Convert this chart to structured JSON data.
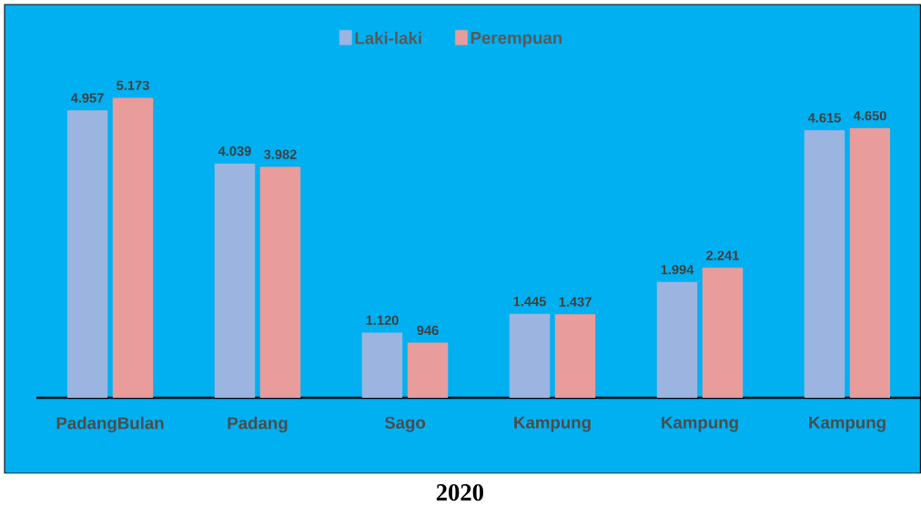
{
  "chart_data": {
    "type": "bar",
    "title": "2020",
    "categories": [
      "PadangBulan",
      "Padang",
      "Sago",
      "Kampung",
      "Kampung",
      "Kampung"
    ],
    "series": [
      {
        "name": "Laki-laki",
        "color": "#9bb5e0",
        "values": [
          4957,
          4039,
          1120,
          1445,
          1994,
          4615
        ],
        "value_labels": [
          "4.957",
          "4.039",
          "1.120",
          "1.445",
          "1.994",
          "4.615"
        ]
      },
      {
        "name": "Perempuan",
        "color": "#e89c9c",
        "values": [
          5173,
          3982,
          946,
          1437,
          2241,
          4650
        ],
        "value_labels": [
          "5.173",
          "3.982",
          "946",
          "1.437",
          "2.241",
          "4.650"
        ]
      }
    ],
    "legend": "top"
  }
}
